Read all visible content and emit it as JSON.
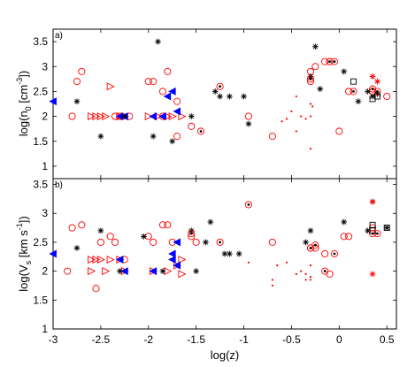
{
  "chart_data": [
    {
      "panel": "a)",
      "type": "scatter",
      "ylabel_text": "log(n",
      "ylabel_sub": "0",
      "ylabel_unit": " [cm",
      "ylabel_sup": "-3",
      "ylabel_close": "])",
      "xlim": [
        -3,
        0.6
      ],
      "ylim": [
        0.75,
        3.75
      ],
      "yticks": [
        "1",
        "1.5",
        "2",
        "2.5",
        "3",
        "3.5"
      ],
      "yticks_vals": [
        1,
        1.5,
        2,
        2.5,
        3,
        3.5
      ],
      "grid": false,
      "series": [
        {
          "marker": "circle-open-red",
          "color": "#ff0000",
          "points": [
            [
              -2.7,
              2.9
            ],
            [
              -2.75,
              2.7
            ],
            [
              -2.8,
              2.0
            ],
            [
              -2.35,
              2.0
            ],
            [
              -2.3,
              2.0
            ],
            [
              -2.2,
              2.0
            ],
            [
              -2.0,
              2.7
            ],
            [
              -1.95,
              2.7
            ],
            [
              -1.8,
              2.9
            ],
            [
              -1.85,
              2.5
            ],
            [
              -1.85,
              2.0
            ],
            [
              -1.7,
              2.3
            ],
            [
              -1.7,
              1.6
            ],
            [
              -1.55,
              1.8
            ],
            [
              -0.95,
              2.0
            ],
            [
              -0.7,
              1.6
            ],
            [
              -0.3,
              2.9
            ],
            [
              -0.3,
              2.7
            ],
            [
              -0.25,
              3.0
            ],
            [
              -0.15,
              3.1
            ],
            [
              -0.1,
              3.1
            ],
            [
              0.0,
              1.7
            ],
            [
              0.1,
              2.5
            ],
            [
              0.35,
              2.5
            ],
            [
              0.5,
              2.4
            ]
          ]
        },
        {
          "marker": "triangle-right-open-red",
          "color": "#ff0000",
          "points": [
            [
              -2.6,
              2.0
            ],
            [
              -2.55,
              2.0
            ],
            [
              -2.5,
              2.0
            ],
            [
              -2.45,
              2.0
            ],
            [
              -2.4,
              2.6
            ],
            [
              -2.3,
              2.0
            ],
            [
              -2.25,
              2.0
            ],
            [
              -2.0,
              2.0
            ],
            [
              -1.9,
              2.0
            ],
            [
              -1.8,
              2.0
            ],
            [
              -1.75,
              2.0
            ],
            [
              -1.65,
              2.0
            ]
          ]
        },
        {
          "marker": "triangle-left-filled-blue",
          "color": "#0000ff",
          "points": [
            [
              -3.0,
              2.3
            ],
            [
              -2.3,
              2.0
            ],
            [
              -2.25,
              2.0
            ],
            [
              -1.95,
              2.0
            ],
            [
              -1.85,
              2.0
            ],
            [
              -1.8,
              2.4
            ],
            [
              -1.75,
              2.5
            ],
            [
              -1.7,
              2.1
            ]
          ]
        },
        {
          "marker": "star-black",
          "color": "#000000",
          "points": [
            [
              -2.75,
              2.3
            ],
            [
              -2.5,
              1.6
            ],
            [
              -2.25,
              2.0
            ],
            [
              -1.95,
              1.6
            ],
            [
              -1.9,
              3.5
            ],
            [
              -1.75,
              1.5
            ],
            [
              -1.55,
              2.0
            ],
            [
              -1.3,
              2.5
            ],
            [
              -1.25,
              2.4
            ],
            [
              -1.15,
              2.4
            ],
            [
              -1.0,
              2.4
            ],
            [
              -0.95,
              1.85
            ],
            [
              -0.3,
              2.8
            ],
            [
              -0.25,
              3.4
            ],
            [
              -0.2,
              2.55
            ],
            [
              0.05,
              2.9
            ],
            [
              0.2,
              2.3
            ],
            [
              0.3,
              2.5
            ],
            [
              0.35,
              2.4
            ],
            [
              0.4,
              2.45
            ]
          ]
        },
        {
          "marker": "circle-dot-red",
          "color": "#ff0000",
          "points": [
            [
              -1.45,
              1.7
            ],
            [
              -1.25,
              2.6
            ],
            [
              -0.3,
              2.75
            ],
            [
              -0.1,
              3.1
            ],
            [
              -0.05,
              3.1
            ],
            [
              0.15,
              2.5
            ],
            [
              0.35,
              2.55
            ],
            [
              0.4,
              2.5
            ]
          ]
        },
        {
          "marker": "dot-red",
          "color": "#ff0000",
          "points": [
            [
              -0.6,
              1.9
            ],
            [
              -0.55,
              1.95
            ],
            [
              -0.5,
              2.1
            ],
            [
              -0.45,
              1.7
            ],
            [
              -0.4,
              2.0
            ],
            [
              -0.35,
              1.95
            ],
            [
              -0.3,
              2.0
            ],
            [
              -0.3,
              2.25
            ],
            [
              -0.28,
              2.2
            ],
            [
              -0.3,
              1.35
            ],
            [
              -0.45,
              2.4
            ]
          ]
        },
        {
          "marker": "square-open-black",
          "color": "#000000",
          "points": [
            [
              0.15,
              2.7
            ],
            [
              0.35,
              2.35
            ],
            [
              0.4,
              2.4
            ]
          ]
        },
        {
          "marker": "star-open-red",
          "color": "#ff0000",
          "points": [
            [
              0.35,
              2.8
            ],
            [
              0.4,
              2.7
            ]
          ]
        }
      ]
    },
    {
      "panel": "b)",
      "type": "scatter",
      "ylabel_text": "log(V",
      "ylabel_sub": "s",
      "ylabel_unit": " [km s",
      "ylabel_sup": "-1",
      "ylabel_close": "])",
      "xlabel": "log(z)",
      "xticks": [
        "-3",
        "-2.5",
        "-2",
        "-1.5",
        "-1",
        "-0.5",
        "0",
        "0.5"
      ],
      "xticks_vals": [
        -3,
        -2.5,
        -2,
        -1.5,
        -1,
        -0.5,
        0,
        0.5
      ],
      "xlim": [
        -3,
        0.6
      ],
      "ylim": [
        1.0,
        3.6
      ],
      "yticks": [
        "1",
        "1.5",
        "2",
        "2.5",
        "3",
        "3.5"
      ],
      "yticks_vals": [
        1,
        1.5,
        2,
        2.5,
        3,
        3.5
      ],
      "grid": false,
      "series": [
        {
          "marker": "circle-open-red",
          "color": "#ff0000",
          "points": [
            [
              -2.8,
              2.75
            ],
            [
              -2.7,
              2.8
            ],
            [
              -2.85,
              2.0
            ],
            [
              -2.55,
              1.7
            ],
            [
              -2.5,
              2.5
            ],
            [
              -2.4,
              2.6
            ],
            [
              -2.35,
              2.5
            ],
            [
              -2.25,
              2.2
            ],
            [
              -2.0,
              2.6
            ],
            [
              -1.95,
              2.5
            ],
            [
              -1.85,
              2.8
            ],
            [
              -1.8,
              2.8
            ],
            [
              -1.75,
              2.5
            ],
            [
              -1.55,
              2.6
            ],
            [
              -1.5,
              2.5
            ],
            [
              -0.7,
              2.5
            ],
            [
              -0.3,
              2.4
            ],
            [
              -0.25,
              2.4
            ],
            [
              -0.15,
              2.3
            ],
            [
              -0.1,
              1.95
            ],
            [
              0.05,
              2.6
            ],
            [
              0.1,
              2.6
            ],
            [
              0.35,
              2.75
            ]
          ]
        },
        {
          "marker": "triangle-right-open-red",
          "color": "#ff0000",
          "points": [
            [
              -2.6,
              2.0
            ],
            [
              -2.6,
              2.2
            ],
            [
              -2.55,
              2.2
            ],
            [
              -2.5,
              2.2
            ],
            [
              -2.45,
              2.0
            ],
            [
              -2.4,
              2.2
            ],
            [
              -2.3,
              2.2
            ],
            [
              -2.25,
              2.0
            ],
            [
              -1.95,
              2.0
            ],
            [
              -1.8,
              2.0
            ],
            [
              -1.7,
              2.1
            ],
            [
              -1.65,
              1.95
            ],
            [
              -1.65,
              2.2
            ]
          ]
        },
        {
          "marker": "triangle-left-filled-blue",
          "color": "#0000ff",
          "points": [
            [
              -3.0,
              2.3
            ],
            [
              -2.3,
              2.2
            ],
            [
              -2.25,
              2.0
            ],
            [
              -1.95,
              2.0
            ],
            [
              -1.75,
              2.2
            ],
            [
              -1.75,
              2.3
            ],
            [
              -1.7,
              2.5
            ],
            [
              -1.7,
              2.1
            ]
          ]
        },
        {
          "marker": "star-black",
          "color": "#000000",
          "points": [
            [
              -2.75,
              2.4
            ],
            [
              -2.5,
              2.7
            ],
            [
              -2.3,
              2.0
            ],
            [
              -2.05,
              2.6
            ],
            [
              -1.85,
              2.0
            ],
            [
              -1.55,
              2.7
            ],
            [
              -1.5,
              2.0
            ],
            [
              -1.4,
              2.5
            ],
            [
              -1.35,
              2.85
            ],
            [
              -1.2,
              2.3
            ],
            [
              -1.15,
              2.3
            ],
            [
              -1.05,
              2.3
            ],
            [
              -0.35,
              2.5
            ],
            [
              -0.3,
              2.7
            ],
            [
              0.05,
              2.85
            ],
            [
              0.3,
              2.7
            ],
            [
              0.35,
              3.2
            ],
            [
              0.5,
              2.75
            ]
          ]
        },
        {
          "marker": "circle-dot-red",
          "color": "#ff0000",
          "points": [
            [
              -1.55,
              2.65
            ],
            [
              -1.25,
              2.5
            ],
            [
              -0.95,
              3.15
            ],
            [
              -0.3,
              2.4
            ],
            [
              -0.25,
              2.45
            ],
            [
              -0.15,
              2.0
            ],
            [
              -0.05,
              2.3
            ],
            [
              0.35,
              2.65
            ],
            [
              0.4,
              2.65
            ]
          ]
        },
        {
          "marker": "dot-red",
          "color": "#ff0000",
          "points": [
            [
              -0.95,
              2.15
            ],
            [
              -0.7,
              1.75
            ],
            [
              -0.7,
              1.85
            ],
            [
              -0.65,
              2.1
            ],
            [
              -0.55,
              2.15
            ],
            [
              -0.45,
              1.95
            ],
            [
              -0.4,
              2.0
            ],
            [
              -0.35,
              1.85
            ],
            [
              -0.35,
              1.95
            ],
            [
              -0.3,
              1.9
            ],
            [
              -0.3,
              1.85
            ],
            [
              -0.3,
              2.1
            ]
          ]
        },
        {
          "marker": "square-open-black",
          "color": "#000000",
          "points": [
            [
              0.35,
              2.7
            ],
            [
              0.35,
              2.8
            ],
            [
              0.5,
              2.75
            ]
          ]
        },
        {
          "marker": "star-open-red",
          "color": "#ff0000",
          "points": [
            [
              0.35,
              3.2
            ],
            [
              0.35,
              1.95
            ]
          ]
        }
      ]
    }
  ]
}
